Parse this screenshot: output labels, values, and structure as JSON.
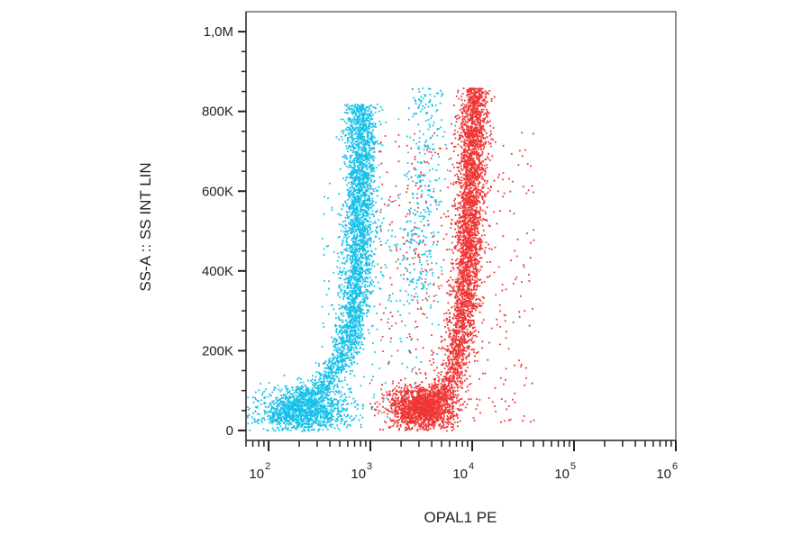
{
  "chart_data": {
    "type": "scatter",
    "title": "",
    "xlabel": "OPAL1 PE",
    "ylabel": "SS-A :: SS INT LIN",
    "x_scale": "log",
    "xlim": [
      60,
      1000000
    ],
    "ylim": [
      -25000,
      1050000
    ],
    "x_ticks": [
      {
        "value": 100,
        "base": "10",
        "exp": "2"
      },
      {
        "value": 1000,
        "base": "10",
        "exp": "3"
      },
      {
        "value": 10000,
        "base": "10",
        "exp": "4"
      },
      {
        "value": 100000,
        "base": "10",
        "exp": "5"
      },
      {
        "value": 1000000,
        "base": "10",
        "exp": "6"
      }
    ],
    "y_ticks": [
      {
        "value": 0,
        "label": "0"
      },
      {
        "value": 200000,
        "label": "200K"
      },
      {
        "value": 400000,
        "label": "400K"
      },
      {
        "value": 600000,
        "label": "600K"
      },
      {
        "value": 800000,
        "label": "800K"
      },
      {
        "value": 1000000,
        "label": "1,0M"
      }
    ],
    "grid": false,
    "legend": "none",
    "series": [
      {
        "color": "#18c0e8",
        "clusters": [
          {
            "shape": "band",
            "count": 3200,
            "y_range": [
              20000,
              820000
            ],
            "x_center": [
              [
                20000,
                100
              ],
              [
                110000,
                320
              ],
              [
                200000,
                580
              ],
              [
                350000,
                720
              ],
              [
                500000,
                760
              ],
              [
                650000,
                790
              ],
              [
                820000,
                800
              ]
            ],
            "x_spread_log": 0.075
          },
          {
            "shape": "blob",
            "count": 1400,
            "x_center": 220,
            "y_center": 50000,
            "x_spread_log": 0.22,
            "y_spread": 30000
          },
          {
            "shape": "band",
            "count": 320,
            "y_range": [
              300000,
              860000
            ],
            "x_center": [
              [
                300000,
                2800
              ],
              [
                600000,
                3200
              ],
              [
                860000,
                3500
              ]
            ],
            "x_spread_log": 0.09
          },
          {
            "shape": "scatter",
            "count": 220,
            "x_range": [
              300,
              5000
            ],
            "y_range": [
              30000,
              600000
            ]
          }
        ]
      },
      {
        "color": "#f03535",
        "clusters": [
          {
            "shape": "blob",
            "count": 1700,
            "x_center": 3200,
            "y_center": 60000,
            "x_spread_log": 0.16,
            "y_spread": 28000
          },
          {
            "shape": "band",
            "count": 3300,
            "y_range": [
              70000,
              860000
            ],
            "x_center": [
              [
                70000,
                5200
              ],
              [
                150000,
                6500
              ],
              [
                250000,
                7800
              ],
              [
                400000,
                8800
              ],
              [
                600000,
                9500
              ],
              [
                860000,
                10500
              ]
            ],
            "x_spread_log": 0.07
          },
          {
            "shape": "scatter",
            "count": 420,
            "x_range": [
              1200,
              40000
            ],
            "y_range": [
              20000,
              750000
            ]
          }
        ]
      }
    ]
  }
}
